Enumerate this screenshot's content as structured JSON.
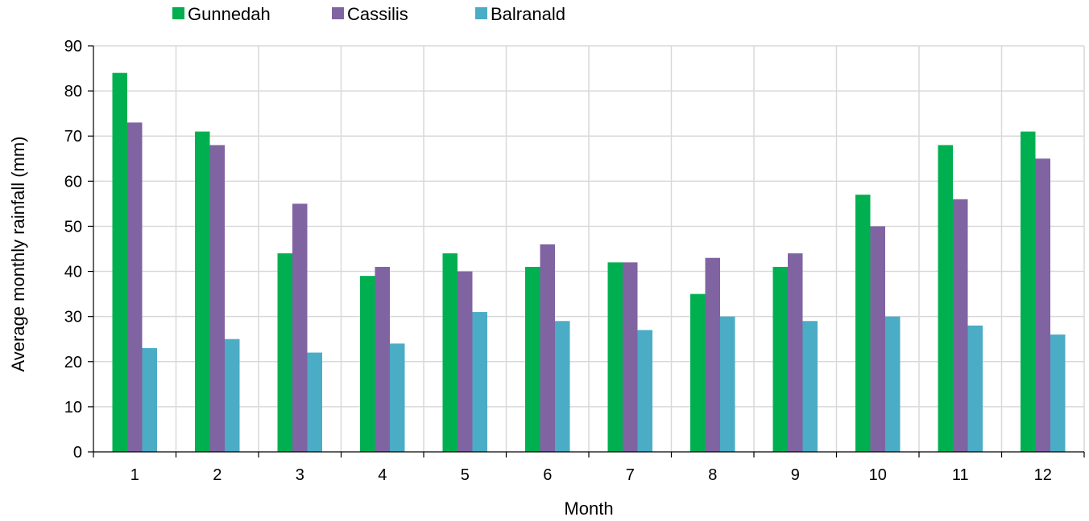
{
  "chart_data": {
    "type": "bar",
    "xlabel": "Month",
    "ylabel": "Average monthly rainfall (mm)",
    "categories": [
      "1",
      "2",
      "3",
      "4",
      "5",
      "6",
      "7",
      "8",
      "9",
      "10",
      "11",
      "12"
    ],
    "ylim": [
      0,
      90
    ],
    "yticks": [
      0,
      10,
      20,
      30,
      40,
      50,
      60,
      70,
      80,
      90
    ],
    "grid": true,
    "legend_position": "top-left",
    "series": [
      {
        "name": "Gunnedah",
        "color": "#00B050",
        "values": [
          84,
          71,
          44,
          39,
          44,
          41,
          42,
          35,
          41,
          57,
          68,
          71
        ]
      },
      {
        "name": "Cassilis",
        "color": "#8064A2",
        "values": [
          73,
          68,
          55,
          41,
          40,
          46,
          42,
          43,
          44,
          50,
          56,
          65
        ]
      },
      {
        "name": "Balranald",
        "color": "#4BACC6",
        "values": [
          23,
          25,
          22,
          24,
          31,
          29,
          27,
          30,
          29,
          30,
          28,
          26
        ]
      }
    ]
  }
}
